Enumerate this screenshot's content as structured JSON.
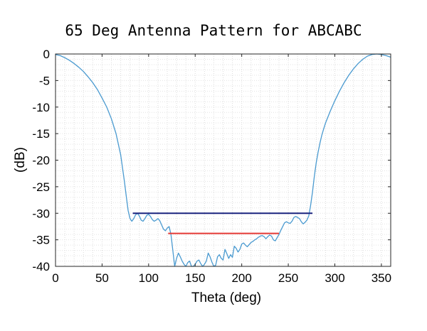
{
  "chart_data": {
    "type": "line",
    "title": "65 Deg Antenna Pattern for ABCABC",
    "xlabel": "Theta (deg)",
    "ylabel": "(dB)",
    "xlim": [
      0,
      360
    ],
    "ylim": [
      -40,
      0
    ],
    "xticks": [
      0,
      50,
      100,
      150,
      200,
      250,
      300,
      350
    ],
    "yticks": [
      0,
      -5,
      -10,
      -15,
      -20,
      -25,
      -30,
      -35,
      -40
    ],
    "grid": "minor dotted",
    "legend": "none",
    "series": [
      {
        "color": "#4a9ad0",
        "x": [
          0,
          5,
          10,
          15,
          20,
          25,
          30,
          35,
          40,
          45,
          50,
          55,
          60,
          65,
          70,
          72,
          74,
          76,
          78,
          80,
          82,
          84,
          86,
          88,
          90,
          92,
          94,
          96,
          98,
          100,
          102,
          104,
          106,
          108,
          110,
          112,
          114,
          116,
          118,
          120,
          122,
          124,
          126,
          128,
          130,
          132,
          134,
          136,
          138,
          140,
          142,
          144,
          146,
          148,
          150,
          152,
          154,
          156,
          158,
          160,
          162,
          164,
          166,
          168,
          170,
          172,
          174,
          176,
          178,
          180,
          182,
          184,
          186,
          188,
          190,
          192,
          194,
          196,
          198,
          200,
          202,
          204,
          206,
          208,
          210,
          212,
          214,
          216,
          218,
          220,
          222,
          224,
          226,
          228,
          230,
          232,
          234,
          236,
          238,
          240,
          242,
          244,
          246,
          248,
          250,
          252,
          254,
          256,
          258,
          260,
          262,
          264,
          266,
          268,
          270,
          272,
          274,
          276,
          278,
          280,
          282,
          284,
          286,
          288,
          290,
          295,
          300,
          305,
          310,
          315,
          320,
          325,
          330,
          335,
          340,
          345,
          350,
          355,
          360
        ],
        "y": [
          -0.1,
          -0.3,
          -0.7,
          -1.2,
          -1.8,
          -2.5,
          -3.3,
          -4.3,
          -5.4,
          -6.7,
          -8.3,
          -10.0,
          -12.2,
          -15.0,
          -19.0,
          -21.5,
          -24.0,
          -26.8,
          -29.5,
          -31.0,
          -31.5,
          -31.0,
          -30.3,
          -30.0,
          -30.5,
          -31.3,
          -31.5,
          -31.0,
          -30.4,
          -30.2,
          -30.6,
          -31.2,
          -31.5,
          -31.3,
          -31.0,
          -31.4,
          -32.2,
          -33.0,
          -33.3,
          -32.8,
          -32.5,
          -34.0,
          -37.0,
          -40.0,
          -38.5,
          -37.5,
          -38.2,
          -39.0,
          -39.6,
          -40.0,
          -39.3,
          -39.0,
          -40.0,
          -40.0,
          -39.6,
          -39.0,
          -38.8,
          -39.5,
          -40.0,
          -39.6,
          -39.0,
          -37.5,
          -38.2,
          -39.2,
          -40.0,
          -39.8,
          -38.2,
          -37.8,
          -38.5,
          -38.8,
          -36.8,
          -37.6,
          -38.5,
          -37.8,
          -38.3,
          -36.2,
          -36.6,
          -37.3,
          -36.8,
          -35.8,
          -35.6,
          -36.0,
          -36.3,
          -35.9,
          -35.5,
          -35.3,
          -35.0,
          -34.8,
          -34.5,
          -34.3,
          -34.2,
          -34.4,
          -34.8,
          -34.4,
          -34.1,
          -34.3,
          -35.0,
          -35.2,
          -34.6,
          -34.0,
          -33.2,
          -32.5,
          -31.8,
          -31.6,
          -31.8,
          -31.9,
          -31.5,
          -30.8,
          -30.6,
          -30.8,
          -31.0,
          -31.6,
          -32.0,
          -31.7,
          -31.3,
          -30.5,
          -28.5,
          -26.0,
          -23.0,
          -20.5,
          -18.5,
          -16.8,
          -15.3,
          -14.1,
          -13.0,
          -10.8,
          -8.8,
          -7.0,
          -5.4,
          -4.0,
          -2.8,
          -1.8,
          -1.0,
          -0.4,
          -0.1,
          0.0,
          -0.1,
          -0.3,
          -0.6
        ]
      }
    ],
    "reference_lines": [
      {
        "color": "#1a237e",
        "x": [
          83,
          276
        ],
        "y": [
          -30,
          -30
        ]
      },
      {
        "color": "#e53935",
        "x": [
          121,
          240
        ],
        "y": [
          -33.8,
          -33.8
        ]
      }
    ]
  }
}
